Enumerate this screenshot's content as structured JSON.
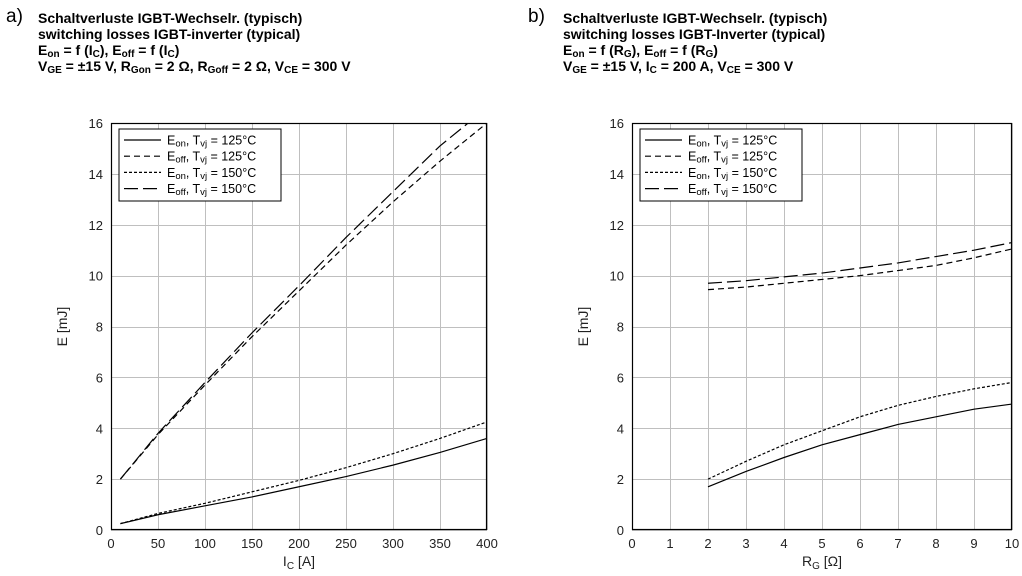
{
  "panels": [
    {
      "letter": "a)",
      "header": {
        "line1": "Schaltverluste IGBT-Wechselr. (typisch)",
        "line2": "switching losses IGBT-inverter (typical)",
        "line3_parts": [
          "E",
          "on",
          " = f (I",
          "C",
          "), E",
          "off",
          " = f (I",
          "C",
          ")"
        ],
        "line4_parts": [
          "V",
          "GE",
          " = ±15 V, R",
          "Gon",
          " = 2 Ω, R",
          "Goff",
          " = 2 Ω, V",
          "CE",
          " = 300 V"
        ]
      }
    },
    {
      "letter": "b)",
      "header": {
        "line1": "Schaltverluste IGBT-Wechselr. (typisch)",
        "line2": "switching losses IGBT-Inverter (typical)",
        "line3_parts": [
          "E",
          "on",
          " = f (R",
          "G",
          "), E",
          "off",
          " = f (R",
          "G",
          ")"
        ],
        "line4_parts": [
          "V",
          "GE",
          " = ±15 V, I",
          "C",
          " = 200 A, V",
          "CE",
          " = 300 V"
        ]
      }
    }
  ],
  "chart_data": [
    {
      "type": "line",
      "xlabel_parts": [
        "I",
        "C",
        " [A]"
      ],
      "ylabel": "E [mJ]",
      "xlim": [
        0,
        400
      ],
      "ylim": [
        0,
        16
      ],
      "xticks": [
        0,
        50,
        100,
        150,
        200,
        250,
        300,
        350,
        400
      ],
      "yticks": [
        0,
        2,
        4,
        6,
        8,
        10,
        12,
        14,
        16
      ],
      "grid": true,
      "legend_position": "top-left",
      "series": [
        {
          "name": "Eon, Tvj = 125°C",
          "legend_parts": [
            "E",
            "on",
            ", T",
            "vj",
            " = 125°C"
          ],
          "dash": "solid",
          "x": [
            10,
            50,
            100,
            150,
            200,
            250,
            300,
            350,
            400
          ],
          "y": [
            0.25,
            0.6,
            0.95,
            1.3,
            1.7,
            2.1,
            2.55,
            3.05,
            3.6
          ]
        },
        {
          "name": "Eoff, Tvj = 125°C",
          "legend_parts": [
            "E",
            "off",
            ", T",
            "vj",
            " = 125°C"
          ],
          "dash": "dashed",
          "x": [
            10,
            50,
            100,
            150,
            200,
            250,
            300,
            350,
            400
          ],
          "y": [
            2.0,
            3.75,
            5.7,
            7.6,
            9.4,
            11.2,
            12.9,
            14.5,
            16.0
          ]
        },
        {
          "name": "Eon, Tvj = 150°C",
          "legend_parts": [
            "E",
            "on",
            ", T",
            "vj",
            " = 150°C"
          ],
          "dash": "dotted",
          "x": [
            10,
            50,
            100,
            150,
            200,
            250,
            300,
            350,
            400
          ],
          "y": [
            0.25,
            0.65,
            1.05,
            1.5,
            1.95,
            2.45,
            3.0,
            3.6,
            4.25
          ]
        },
        {
          "name": "Eoff, Tvj = 150°C",
          "legend_parts": [
            "E",
            "off",
            ", T",
            "vj",
            " = 150°C"
          ],
          "dash": "longdash",
          "x": [
            10,
            50,
            100,
            150,
            200,
            250,
            300,
            350,
            400
          ],
          "y": [
            2.0,
            3.8,
            5.8,
            7.75,
            9.6,
            11.5,
            13.3,
            15.1,
            16.6
          ]
        }
      ]
    },
    {
      "type": "line",
      "xlabel_parts": [
        "R",
        "G",
        " [Ω]"
      ],
      "ylabel": "E [mJ]",
      "xlim": [
        0,
        10
      ],
      "ylim": [
        0,
        16
      ],
      "xticks": [
        0,
        1,
        2,
        3,
        4,
        5,
        6,
        7,
        8,
        9,
        10
      ],
      "yticks": [
        0,
        2,
        4,
        6,
        8,
        10,
        12,
        14,
        16
      ],
      "grid": true,
      "legend_position": "top-left",
      "series": [
        {
          "name": "Eon, Tvj = 125°C",
          "legend_parts": [
            "E",
            "on",
            ", T",
            "vj",
            " = 125°C"
          ],
          "dash": "solid",
          "x": [
            2,
            3,
            4,
            5,
            6,
            7,
            8,
            9,
            10
          ],
          "y": [
            1.7,
            2.3,
            2.85,
            3.35,
            3.75,
            4.15,
            4.45,
            4.75,
            4.95
          ]
        },
        {
          "name": "Eoff, Tvj = 125°C",
          "legend_parts": [
            "E",
            "off",
            ", T",
            "vj",
            " = 125°C"
          ],
          "dash": "dashed",
          "x": [
            2,
            3,
            4,
            5,
            6,
            7,
            8,
            9,
            10
          ],
          "y": [
            9.45,
            9.55,
            9.7,
            9.85,
            10.0,
            10.2,
            10.4,
            10.7,
            11.05
          ]
        },
        {
          "name": "Eon, Tvj = 150°C",
          "legend_parts": [
            "E",
            "on",
            ", T",
            "vj",
            " = 150°C"
          ],
          "dash": "dotted",
          "x": [
            2,
            3,
            4,
            5,
            6,
            7,
            8,
            9,
            10
          ],
          "y": [
            2.0,
            2.7,
            3.35,
            3.9,
            4.45,
            4.9,
            5.25,
            5.55,
            5.8
          ]
        },
        {
          "name": "Eoff, Tvj = 150°C",
          "legend_parts": [
            "E",
            "off",
            ", T",
            "vj",
            " = 150°C"
          ],
          "dash": "longdash",
          "x": [
            2,
            3,
            4,
            5,
            6,
            7,
            8,
            9,
            10
          ],
          "y": [
            9.7,
            9.8,
            9.95,
            10.1,
            10.3,
            10.5,
            10.75,
            11.0,
            11.3
          ]
        }
      ]
    }
  ]
}
